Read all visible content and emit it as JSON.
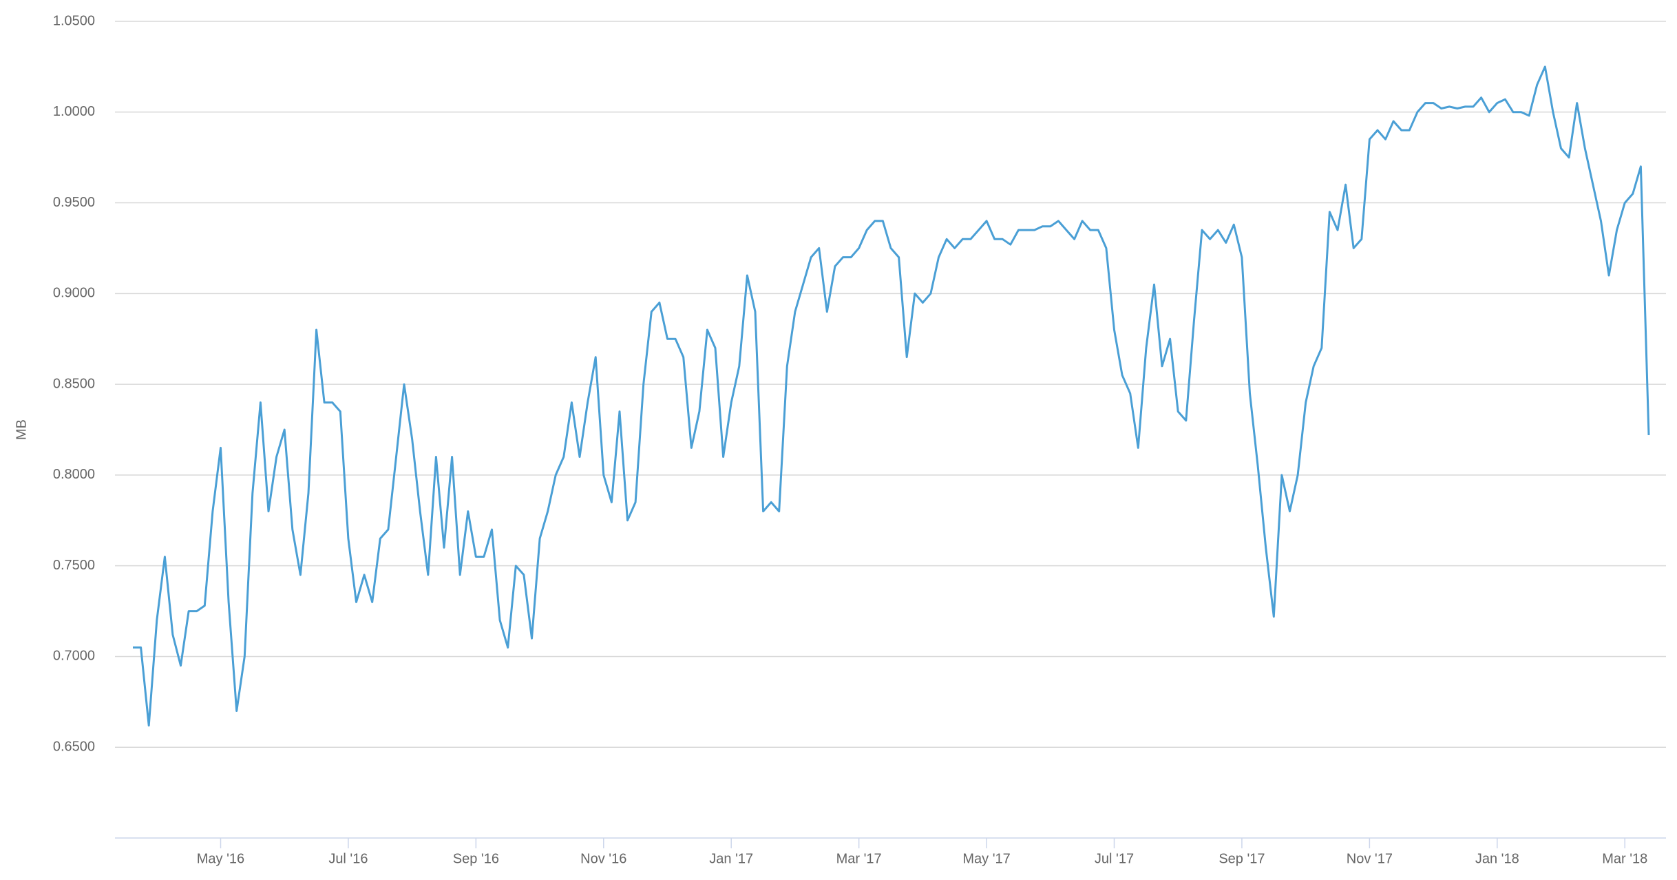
{
  "chart_data": {
    "type": "line",
    "y_label": "MB",
    "categories": [
      null,
      null,
      null,
      null,
      null,
      null,
      null,
      null,
      null,
      null,
      null,
      "May '16",
      null,
      null,
      null,
      null,
      null,
      null,
      null,
      null,
      null,
      null,
      null,
      null,
      null,
      null,
      null,
      "Jul '16",
      null,
      null,
      null,
      null,
      null,
      null,
      null,
      null,
      null,
      null,
      null,
      null,
      null,
      null,
      null,
      "Sep '16",
      null,
      null,
      null,
      null,
      null,
      null,
      null,
      null,
      null,
      null,
      null,
      null,
      null,
      null,
      null,
      "Nov '16",
      null,
      null,
      null,
      null,
      null,
      null,
      null,
      null,
      null,
      null,
      null,
      null,
      null,
      null,
      null,
      "Jan '17",
      null,
      null,
      null,
      null,
      null,
      null,
      null,
      null,
      null,
      null,
      null,
      null,
      null,
      null,
      null,
      "Mar '17",
      null,
      null,
      null,
      null,
      null,
      null,
      null,
      null,
      null,
      null,
      null,
      null,
      null,
      null,
      null,
      "May '17",
      null,
      null,
      null,
      null,
      null,
      null,
      null,
      null,
      null,
      null,
      null,
      null,
      null,
      null,
      null,
      "Jul '17",
      null,
      null,
      null,
      null,
      null,
      null,
      null,
      null,
      null,
      null,
      null,
      null,
      null,
      null,
      null,
      "Sep '17",
      null,
      null,
      null,
      null,
      null,
      null,
      null,
      null,
      null,
      null,
      null,
      null,
      null,
      null,
      null,
      "Nov '17",
      null,
      null,
      null,
      null,
      null,
      null,
      null,
      null,
      null,
      null,
      null,
      null,
      null,
      null,
      null,
      "Jan '18",
      null,
      null,
      null,
      null,
      null,
      null,
      null,
      null,
      null,
      null,
      null,
      null,
      null,
      null,
      null,
      "Mar '18",
      null,
      null,
      null
    ],
    "series": [
      {
        "color": "#4a9fd5",
        "values": [
          0.705,
          0.705,
          0.662,
          0.72,
          0.755,
          0.712,
          0.695,
          0.725,
          0.725,
          0.728,
          0.78,
          0.815,
          0.73,
          0.67,
          0.7,
          0.79,
          0.84,
          0.78,
          0.81,
          0.825,
          0.77,
          0.745,
          0.79,
          0.88,
          0.84,
          0.84,
          0.835,
          0.765,
          0.73,
          0.745,
          0.73,
          0.765,
          0.77,
          0.81,
          0.85,
          0.82,
          0.78,
          0.745,
          0.81,
          0.76,
          0.81,
          0.745,
          0.78,
          0.755,
          0.755,
          0.77,
          0.72,
          0.705,
          0.75,
          0.745,
          0.71,
          0.765,
          0.78,
          0.8,
          0.81,
          0.84,
          0.81,
          0.84,
          0.865,
          0.8,
          0.785,
          0.835,
          0.775,
          0.785,
          0.85,
          0.89,
          0.895,
          0.875,
          0.875,
          0.865,
          0.815,
          0.835,
          0.88,
          0.87,
          0.81,
          0.84,
          0.86,
          0.91,
          0.89,
          0.78,
          0.785,
          0.78,
          0.86,
          0.89,
          0.905,
          0.92,
          0.925,
          0.89,
          0.915,
          0.92,
          0.92,
          0.925,
          0.935,
          0.94,
          0.94,
          0.925,
          0.92,
          0.865,
          0.9,
          0.895,
          0.9,
          0.92,
          0.93,
          0.925,
          0.93,
          0.93,
          0.935,
          0.94,
          0.93,
          0.93,
          0.927,
          0.935,
          0.935,
          0.935,
          0.937,
          0.937,
          0.94,
          0.935,
          0.93,
          0.94,
          0.935,
          0.935,
          0.925,
          0.88,
          0.855,
          0.845,
          0.815,
          0.87,
          0.905,
          0.86,
          0.875,
          0.835,
          0.83,
          0.885,
          0.935,
          0.93,
          0.935,
          0.928,
          0.938,
          0.92,
          0.845,
          0.805,
          0.76,
          0.722,
          0.8,
          0.78,
          0.8,
          0.84,
          0.86,
          0.87,
          0.945,
          0.935,
          0.96,
          0.925,
          0.93,
          0.985,
          0.99,
          0.985,
          0.995,
          0.99,
          0.99,
          1.0,
          1.005,
          1.005,
          1.002,
          1.003,
          1.002,
          1.003,
          1.003,
          1.008,
          1.0,
          1.005,
          1.007,
          1.0,
          1.0,
          0.998,
          1.015,
          1.025,
          1.0,
          0.98,
          0.975,
          1.005,
          0.98,
          0.96,
          0.94,
          0.91,
          0.935,
          0.95,
          0.955,
          0.97,
          0.822
        ]
      }
    ],
    "ylim": [
      0.6,
      1.05
    ],
    "yticks": [
      {
        "value": 0.65,
        "label": "0.6500"
      },
      {
        "value": 0.7,
        "label": "0.7000"
      },
      {
        "value": 0.75,
        "label": "0.7500"
      },
      {
        "value": 0.8,
        "label": "0.8000"
      },
      {
        "value": 0.85,
        "label": "0.8500"
      },
      {
        "value": 0.9,
        "label": "0.9000"
      },
      {
        "value": 0.95,
        "label": "0.9500"
      },
      {
        "value": 1.0,
        "label": "1.0000"
      },
      {
        "value": 1.05,
        "label": "1.0500"
      }
    ],
    "grid": true
  }
}
